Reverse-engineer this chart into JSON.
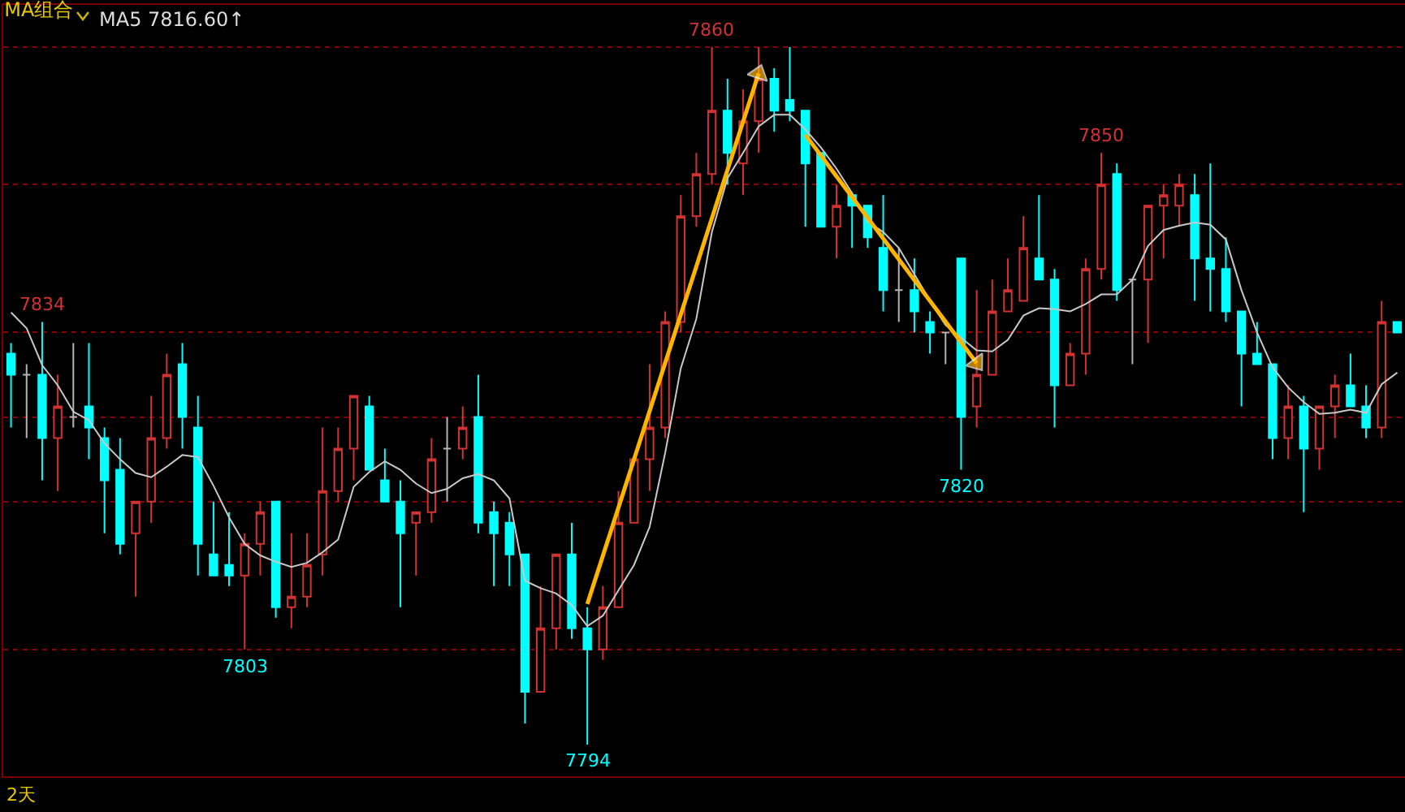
{
  "chart_data": {
    "type": "candlestick",
    "title": "MA组合",
    "annotations": [
      "MA5 7816.60↑",
      "2天",
      {
        "text": "7834",
        "y": 7834
      },
      {
        "text": "7803",
        "y": 7803
      },
      {
        "text": "7794",
        "y": 7794
      },
      {
        "text": "7860",
        "y": 7860
      },
      {
        "text": "7820",
        "y": 7820
      },
      {
        "text": "7850",
        "y": 7850
      }
    ],
    "categories": [
      null,
      null,
      null,
      null,
      null,
      null,
      null,
      null,
      null,
      null,
      null,
      null,
      null,
      null,
      null,
      null,
      null,
      null,
      null,
      null,
      null,
      null,
      null,
      null,
      null,
      null,
      null,
      null,
      null,
      null,
      null,
      null,
      null,
      null,
      null,
      null,
      null,
      null,
      null,
      null,
      null,
      null,
      null,
      null,
      null,
      null,
      null,
      null,
      null,
      null,
      null,
      null,
      null,
      null,
      null,
      null,
      null,
      null,
      null,
      null,
      null,
      null,
      null,
      null,
      null,
      null,
      null,
      null,
      null,
      null,
      null,
      null,
      null,
      null,
      null,
      null,
      null,
      null,
      null,
      null,
      null,
      null,
      null,
      null,
      null,
      null,
      null,
      null,
      null,
      null
    ],
    "ohlc": [
      [
        7831,
        7832,
        7824,
        7829
      ],
      [
        7829,
        7830,
        7823,
        7829
      ],
      [
        7829,
        7834,
        7819,
        7823
      ],
      [
        7823,
        7829,
        7818,
        7826
      ],
      [
        7825,
        7832,
        7824,
        7825
      ],
      [
        7826,
        7832,
        7821,
        7824
      ],
      [
        7823,
        7824,
        7814,
        7819
      ],
      [
        7820,
        7823,
        7812,
        7813
      ],
      [
        7814,
        7817,
        7808,
        7817
      ],
      [
        7817,
        7827,
        7815,
        7823
      ],
      [
        7823,
        7831,
        7822,
        7829
      ],
      [
        7830,
        7832,
        7822,
        7825
      ],
      [
        7824,
        7827,
        7810,
        7813
      ],
      [
        7812,
        7817,
        7810,
        7810
      ],
      [
        7811,
        7816,
        7809,
        7810
      ],
      [
        7810,
        7814,
        7803,
        7813
      ],
      [
        7813,
        7817,
        7810,
        7816
      ],
      [
        7817,
        7817,
        7806,
        7807
      ],
      [
        7807,
        7814,
        7805,
        7808
      ],
      [
        7808,
        7814,
        7807,
        7811
      ],
      [
        7812,
        7824,
        7810,
        7818
      ],
      [
        7818,
        7824,
        7817,
        7822
      ],
      [
        7822,
        7827,
        7819,
        7827
      ],
      [
        7826,
        7827,
        7820,
        7820
      ],
      [
        7819,
        7822,
        7817,
        7817
      ],
      [
        7817,
        7819,
        7807,
        7814
      ],
      [
        7815,
        7816,
        7810,
        7816
      ],
      [
        7816,
        7823,
        7815,
        7821
      ],
      [
        7822,
        7825,
        7817,
        7822
      ],
      [
        7822,
        7826,
        7821,
        7824
      ],
      [
        7825,
        7829,
        7814,
        7815
      ],
      [
        7816,
        7817,
        7809,
        7814
      ],
      [
        7815,
        7816,
        7809,
        7812
      ],
      [
        7812,
        7812,
        7796,
        7799
      ],
      [
        7799,
        7809,
        7799,
        7805
      ],
      [
        7805,
        7812,
        7803,
        7812
      ],
      [
        7812,
        7815,
        7804,
        7805
      ],
      [
        7805,
        7807,
        7794,
        7803
      ],
      [
        7803,
        7809,
        7802,
        7807
      ],
      [
        7807,
        7818,
        7807,
        7815
      ],
      [
        7815,
        7821,
        7815,
        7821
      ],
      [
        7821,
        7830,
        7818,
        7824
      ],
      [
        7824,
        7835,
        7823,
        7834
      ],
      [
        7834,
        7846,
        7833,
        7844
      ],
      [
        7844,
        7850,
        7843,
        7848
      ],
      [
        7848,
        7860,
        7847,
        7854
      ],
      [
        7854,
        7857,
        7847,
        7850
      ],
      [
        7849,
        7856,
        7846,
        7853
      ],
      [
        7853,
        7860,
        7850,
        7857
      ],
      [
        7857,
        7858,
        7852,
        7854
      ],
      [
        7855,
        7860,
        7853,
        7854
      ],
      [
        7854,
        7854,
        7843,
        7849
      ],
      [
        7850,
        7850,
        7843,
        7843
      ],
      [
        7843,
        7847,
        7840,
        7845
      ],
      [
        7846,
        7846,
        7841,
        7845
      ],
      [
        7845,
        7845,
        7841,
        7842
      ],
      [
        7841,
        7846,
        7835,
        7837
      ],
      [
        7837,
        7841,
        7834,
        7837
      ],
      [
        7837,
        7840,
        7833,
        7835
      ],
      [
        7834,
        7835,
        7831,
        7833
      ],
      [
        7833,
        7833,
        7830,
        7833
      ],
      [
        7840,
        7840,
        7820,
        7825
      ],
      [
        7826,
        7837,
        7824,
        7829
      ],
      [
        7829,
        7838,
        7829,
        7835
      ],
      [
        7835,
        7840,
        7835,
        7837
      ],
      [
        7836,
        7844,
        7836,
        7841
      ],
      [
        7840,
        7846,
        7838,
        7838
      ],
      [
        7838,
        7839,
        7824,
        7828
      ],
      [
        7828,
        7832,
        7828,
        7831
      ],
      [
        7831,
        7840,
        7829,
        7839
      ],
      [
        7839,
        7850,
        7838,
        7847
      ],
      [
        7848,
        7849,
        7836,
        7837
      ],
      [
        7838,
        7838,
        7830,
        7838
      ],
      [
        7838,
        7845,
        7832,
        7845
      ],
      [
        7845,
        7847,
        7840,
        7846
      ],
      [
        7845,
        7848,
        7843,
        7847
      ],
      [
        7846,
        7848,
        7836,
        7840
      ],
      [
        7840,
        7849,
        7835,
        7839
      ],
      [
        7839,
        7842,
        7834,
        7835
      ],
      [
        7835,
        7835,
        7826,
        7831
      ],
      [
        7831,
        7834,
        7830,
        7830
      ],
      [
        7830,
        7830,
        7821,
        7823
      ],
      [
        7823,
        7828,
        7821,
        7826
      ],
      [
        7826,
        7827,
        7816,
        7822
      ],
      [
        7822,
        7826,
        7820,
        7826
      ],
      [
        7826,
        7829,
        7823,
        7828
      ],
      [
        7828,
        7831,
        7826,
        7826
      ],
      [
        7826,
        7828,
        7823,
        7824
      ],
      [
        7824,
        7836,
        7823,
        7834
      ],
      [
        7834,
        7834,
        7833,
        7833
      ]
    ],
    "colors": [
      "#00ffff",
      "#b4b4b4",
      "#00ffff",
      "#d23232",
      "#b4b4b4",
      "#00ffff",
      "#00ffff",
      "#00ffff",
      "#d23232",
      "#d23232",
      "#d23232",
      "#00ffff",
      "#00ffff",
      "#00ffff",
      "#00ffff",
      "#d23232",
      "#d23232",
      "#00ffff",
      "#d23232",
      "#d23232",
      "#d23232",
      "#d23232",
      "#d23232",
      "#00ffff",
      "#00ffff",
      "#00ffff",
      "#d23232",
      "#d23232",
      "#b4b4b4",
      "#d23232",
      "#00ffff",
      "#00ffff",
      "#00ffff",
      "#00ffff",
      "#d23232",
      "#d23232",
      "#00ffff",
      "#00ffff",
      "#d23232",
      "#d23232",
      "#d23232",
      "#d23232",
      "#d23232",
      "#d23232",
      "#d23232",
      "#d23232",
      "#00ffff",
      "#d23232",
      "#d23232",
      "#00ffff",
      "#00ffff",
      "#00ffff",
      "#00ffff",
      "#d23232",
      "#00ffff",
      "#00ffff",
      "#00ffff",
      "#b4b4b4",
      "#00ffff",
      "#00ffff",
      "#b4b4b4",
      "#00ffff",
      "#d23232",
      "#d23232",
      "#d23232",
      "#d23232",
      "#00ffff",
      "#00ffff",
      "#d23232",
      "#d23232",
      "#d23232",
      "#00ffff",
      "#b4b4b4",
      "#d23232",
      "#d23232",
      "#d23232",
      "#00ffff",
      "#00ffff",
      "#00ffff",
      "#00ffff",
      "#00ffff",
      "#00ffff",
      "#d23232",
      "#00ffff",
      "#d23232",
      "#d23232",
      "#00ffff",
      "#00ffff",
      "#d23232",
      "#00ffff"
    ],
    "ylim": [
      7791,
      7864
    ],
    "yticks": [
      {
        "value": 7860,
        "label": null
      },
      {
        "value": 7847,
        "label": null
      },
      {
        "value": 7833,
        "label": null
      },
      {
        "value": 7825,
        "label": null
      },
      {
        "value": 7817,
        "label": null
      },
      {
        "value": 7803,
        "label": null
      }
    ],
    "grid": "y",
    "series": [
      {
        "type": "line",
        "color": "#c8c8c8",
        "line_style": "solid",
        "values": [
          7834.9,
          7833.4,
          7829.9,
          7828.0,
          7825.5,
          7824.7,
          7822.5,
          7821.0,
          7819.7,
          7819.3,
          7820.3,
          7821.4,
          7821.2,
          7818.5,
          7815.5,
          7813.0,
          7811.9,
          7811.3,
          7810.8,
          7811.2,
          7812.2,
          7813.4,
          7818.4,
          7819.8,
          7820.8,
          7820.0,
          7818.7,
          7817.8,
          7818.2,
          7819.2,
          7819.6,
          7819.0,
          7817.3,
          7809.5,
          7808.8,
          7808.3,
          7807.2,
          7805.2,
          7806.2,
          7808.6,
          7811.0,
          7814.6,
          7821.6,
          7829.6,
          7834.3,
          7842.5,
          7847.6,
          7850.0,
          7852.5,
          7853.6,
          7853.6,
          7852.2,
          7850.5,
          7848.5,
          7846.2,
          7843.5,
          7842.5,
          7841.0,
          7838.5,
          7836.0,
          7833.7,
          7832.5,
          7831.3,
          7831.2,
          7832.3,
          7834.6,
          7835.3,
          7835.2,
          7835.0,
          7835.7,
          7836.6,
          7836.6,
          7838.0,
          7841.2,
          7842.7,
          7843.1,
          7843.4,
          7843.2,
          7841.8,
          7837.0,
          7833.0,
          7829.7,
          7827.8,
          7826.4,
          7825.3,
          7825.4,
          7825.7,
          7825.4,
          7828.1,
          7829.2
        ]
      },
      {
        "type": "line",
        "color": "#ffb400",
        "marker": "triangle",
        "values": [
          null,
          null,
          null,
          null,
          null,
          null,
          null,
          null,
          null,
          null,
          null,
          null,
          null,
          null,
          null,
          null,
          null,
          null,
          null,
          null,
          null,
          null,
          null,
          null,
          null,
          null,
          null,
          null,
          null,
          null,
          null,
          null,
          null,
          null,
          null,
          null,
          null,
          7807.3,
          null,
          null,
          null,
          null,
          null,
          null,
          null,
          null,
          null,
          null,
          7857.5,
          null,
          null,
          null,
          null,
          null,
          null,
          null,
          null,
          null,
          null,
          null,
          null,
          null,
          null,
          null,
          null,
          null,
          null,
          null,
          null,
          null,
          null,
          null,
          null,
          null,
          null,
          null,
          null,
          null,
          null,
          null,
          null,
          null,
          null,
          null,
          null,
          null,
          null,
          null,
          null,
          null
        ]
      },
      {
        "type": "line",
        "color": "#ffb400",
        "marker": "triangle",
        "values": [
          null,
          null,
          null,
          null,
          null,
          null,
          null,
          null,
          null,
          null,
          null,
          null,
          null,
          null,
          null,
          null,
          null,
          null,
          null,
          null,
          null,
          null,
          null,
          null,
          null,
          null,
          null,
          null,
          null,
          null,
          null,
          null,
          null,
          null,
          null,
          null,
          null,
          null,
          null,
          null,
          null,
          null,
          null,
          null,
          null,
          null,
          null,
          null,
          null,
          null,
          null,
          7851.7,
          null,
          null,
          null,
          null,
          null,
          null,
          null,
          null,
          null,
          null,
          7830.1,
          null,
          null,
          null,
          null,
          null,
          null,
          null,
          null,
          null,
          null,
          null,
          null,
          null,
          null,
          null,
          null,
          null,
          null,
          null,
          null,
          null,
          null,
          null,
          null,
          null,
          null,
          null
        ]
      }
    ]
  }
}
